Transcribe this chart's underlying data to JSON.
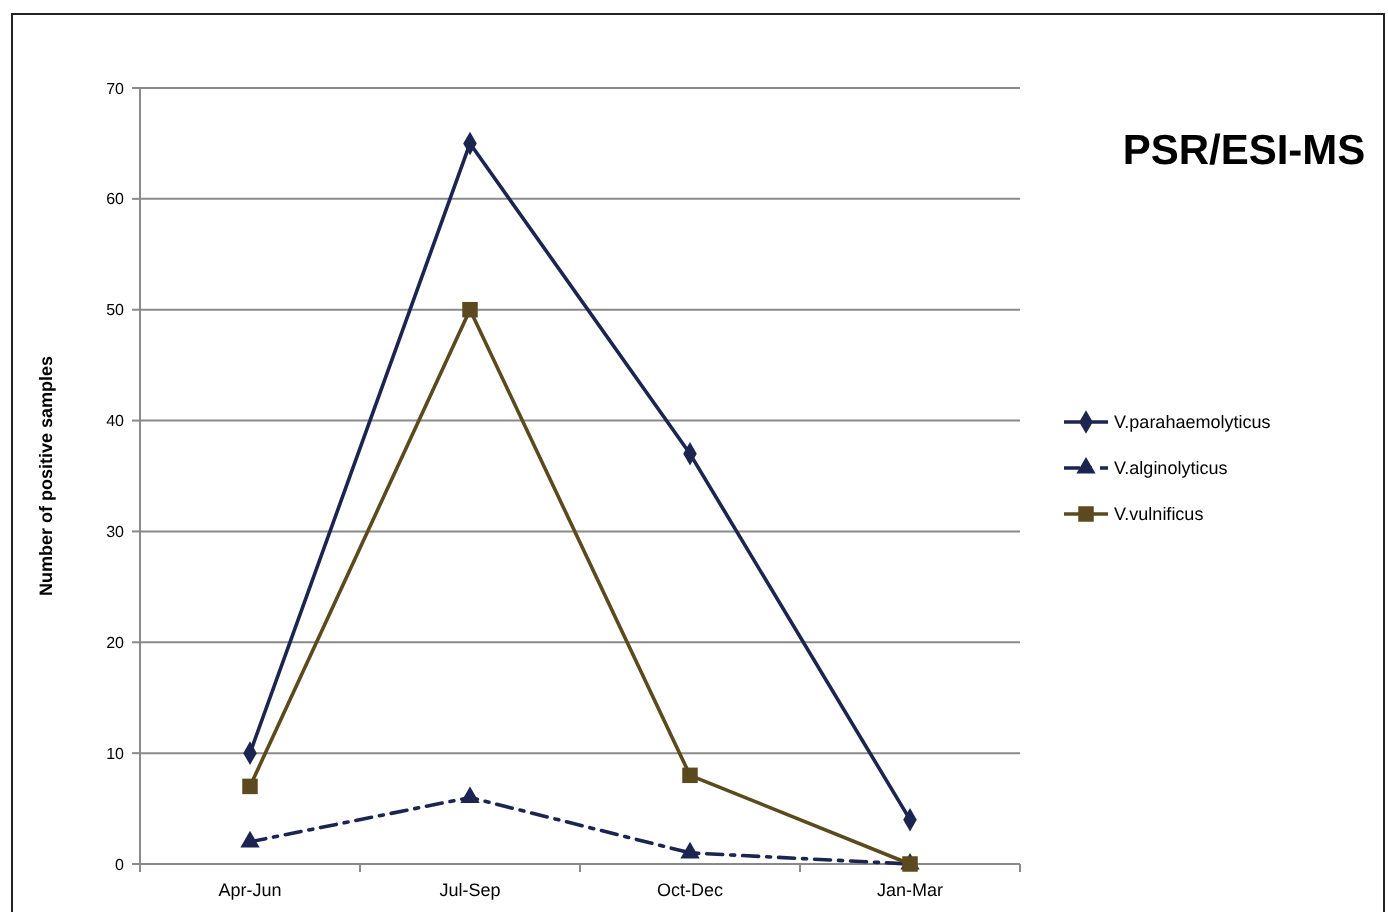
{
  "chart_data": {
    "type": "line",
    "title": "PSR/ESI-MS",
    "ylabel": "Number of positive samples",
    "categories": [
      "Apr-Jun",
      "Jul-Sep",
      "Oct-Dec",
      "Jan-Mar"
    ],
    "ylim": [
      0,
      70
    ],
    "yticks": [
      0,
      10,
      20,
      30,
      40,
      50,
      60,
      70
    ],
    "grid": "y",
    "legend": "right",
    "series": [
      {
        "name": "V.parahaemolyticus",
        "color": "#1c2550",
        "values": [
          10,
          65,
          37,
          4
        ],
        "marker": "diamond",
        "line_style": "solid"
      },
      {
        "name": "V.alginolyticus",
        "color": "#1c2550",
        "values": [
          2,
          6,
          1,
          0
        ],
        "marker": "triangle",
        "line_style": "dashed"
      },
      {
        "name": "V.vulnificus",
        "color": "#5a4a1e",
        "values": [
          7,
          50,
          8,
          0
        ],
        "marker": "square",
        "line_style": "solid"
      }
    ]
  }
}
